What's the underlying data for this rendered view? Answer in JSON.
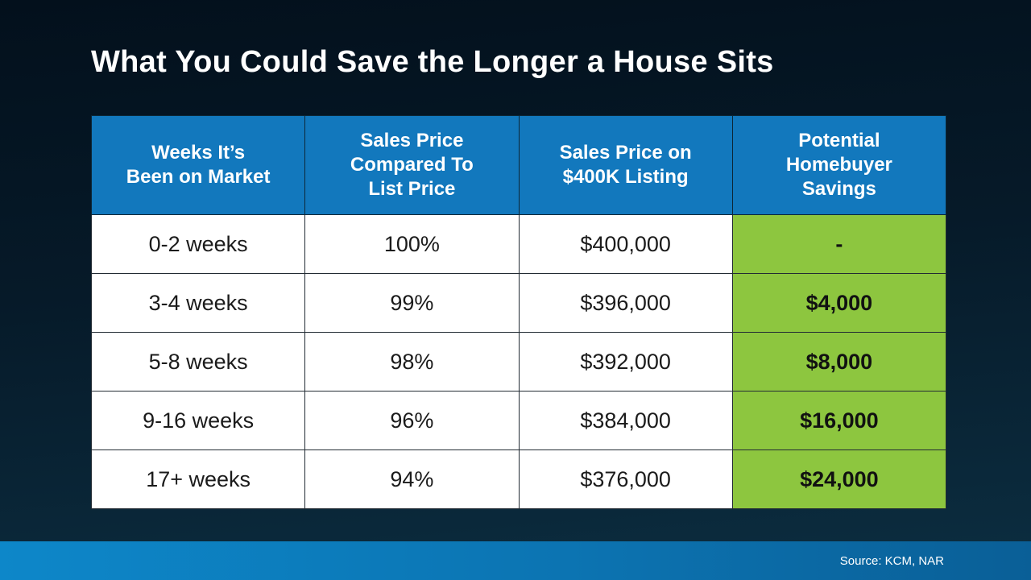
{
  "slide": {
    "title": "What You Could Save the Longer a House Sits",
    "source": "Source: KCM, NAR"
  },
  "colors": {
    "background_top": "#03101c",
    "background_bottom": "#0c2e41",
    "header_blue": "#1278bd",
    "savings_green": "#8dc63f",
    "footer_blue_left": "#0d87c9",
    "footer_blue_right": "#0a5f97",
    "body_text": "#1b1b1b",
    "title_text": "#ffffff"
  },
  "table": {
    "headers": [
      "Weeks It’s\nBeen on Market",
      "Sales Price\nCompared To\nList Price",
      "Sales Price on\n$400K Listing",
      "Potential\nHomebuyer\nSavings"
    ],
    "rows": [
      [
        "0-2 weeks",
        "100%",
        "$400,000",
        "-"
      ],
      [
        "3-4 weeks",
        "99%",
        "$396,000",
        "$4,000"
      ],
      [
        "5-8 weeks",
        "98%",
        "$392,000",
        "$8,000"
      ],
      [
        "9-16 weeks",
        "96%",
        "$384,000",
        "$16,000"
      ],
      [
        "17+ weeks",
        "94%",
        "$376,000",
        "$24,000"
      ]
    ]
  },
  "chart_data": {
    "type": "table",
    "title": "What You Could Save the Longer a House Sits",
    "columns": [
      "Weeks It's Been on Market",
      "Sales Price Compared To List Price",
      "Sales Price on $400K Listing",
      "Potential Homebuyer Savings"
    ],
    "rows": [
      [
        "0-2 weeks",
        "100%",
        "$400,000",
        "-"
      ],
      [
        "3-4 weeks",
        "99%",
        "$396,000",
        "$4,000"
      ],
      [
        "5-8 weeks",
        "98%",
        "$392,000",
        "$8,000"
      ],
      [
        "9-16 weeks",
        "96%",
        "$384,000",
        "$16,000"
      ],
      [
        "17+ weeks",
        "94%",
        "$376,000",
        "$24,000"
      ]
    ],
    "notes": "Savings column highlighted green; source: KCM, NAR"
  }
}
